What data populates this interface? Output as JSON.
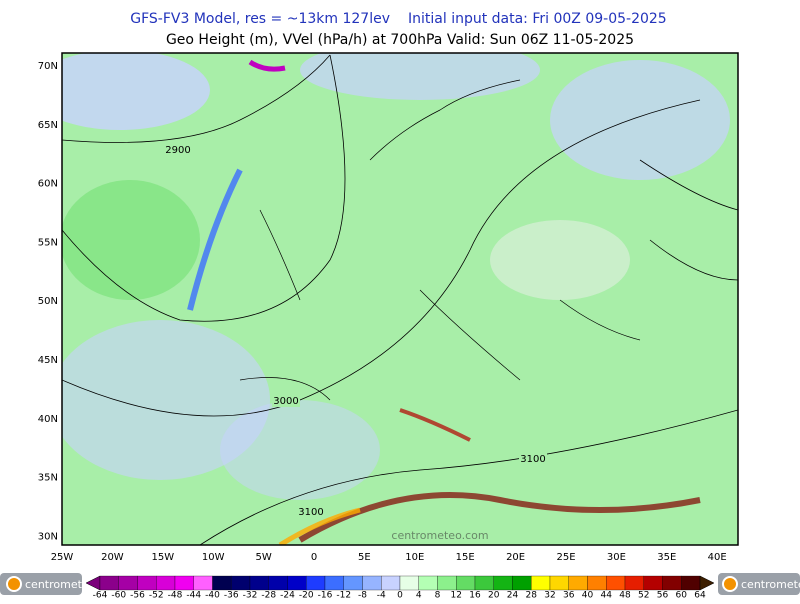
{
  "header": {
    "model": "GFS-FV3 Model, res = ~13km 127lev",
    "init": "Initial input data: Fri 00Z 09-05-2025",
    "field": "Geo Height (m), VVel (hPa/h) at 700hPa  Valid: Sun 06Z 11-05-2025"
  },
  "map": {
    "lat_labels": [
      "70N",
      "65N",
      "60N",
      "55N",
      "50N",
      "45N",
      "40N",
      "35N",
      "30N"
    ],
    "lon_labels": [
      "25W",
      "20W",
      "15W",
      "10W",
      "5W",
      "0",
      "5E",
      "10E",
      "15E",
      "20E",
      "25E",
      "30E",
      "35E",
      "40E"
    ],
    "contour_labels": [
      "2900",
      "3000",
      "3100",
      "3100"
    ],
    "watermark": "centrometeo.com"
  },
  "colorbar": {
    "labels": [
      "-64",
      "-60",
      "-56",
      "-52",
      "-48",
      "-44",
      "-40",
      "-36",
      "-32",
      "-28",
      "-24",
      "-20",
      "-16",
      "-12",
      "-8",
      "-4",
      "0",
      "4",
      "8",
      "12",
      "16",
      "20",
      "24",
      "28",
      "32",
      "36",
      "40",
      "44",
      "48",
      "52",
      "56",
      "60",
      "64"
    ],
    "colors": [
      "#8b008b",
      "#a500a5",
      "#c000c0",
      "#d800d8",
      "#f000f0",
      "#ff60ff",
      "#000050",
      "#00006e",
      "#00008c",
      "#0000aa",
      "#0000c8",
      "#1e3cff",
      "#3c6eff",
      "#6496ff",
      "#96b4ff",
      "#c8d2ff",
      "#e6ffe6",
      "#b4ffb4",
      "#8cf08c",
      "#64dc64",
      "#3cc83c",
      "#14b414",
      "#00a000",
      "#ffff00",
      "#ffd700",
      "#ffaa00",
      "#ff8000",
      "#ff5000",
      "#e61e00",
      "#b40000",
      "#820000",
      "#500000"
    ],
    "low_color": "#7a007a",
    "high_color": "#3c1e00"
  },
  "logos": {
    "left": "centrometeo",
    "right": "centrometeo"
  }
}
